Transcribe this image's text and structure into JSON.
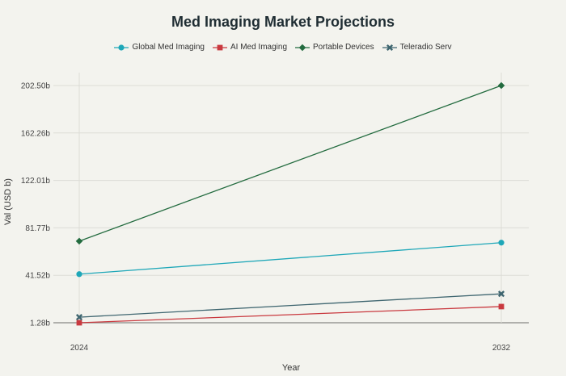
{
  "chart_data": {
    "type": "line",
    "title": "Med Imaging Market Projections",
    "xlabel": "Year",
    "ylabel": "Val (USD b)",
    "x": [
      "2024",
      "2032"
    ],
    "ylim": [
      0,
      210
    ],
    "yticks": [
      "1.28b",
      "41.52b",
      "81.77b",
      "122.01b",
      "162.26b",
      "202.50b"
    ],
    "ytick_values": [
      1.28,
      41.52,
      81.77,
      122.01,
      162.26,
      202.5
    ],
    "grid": true,
    "legend_position": "top-center",
    "series": [
      {
        "name": "Global Med Imaging",
        "values": [
          42.5,
          69.2
        ],
        "color": "#1ea7b8",
        "marker": "circle"
      },
      {
        "name": "AI Med Imaging",
        "values": [
          1.28,
          15.0
        ],
        "color": "#c9393f",
        "marker": "square"
      },
      {
        "name": "Portable Devices",
        "values": [
          70.5,
          202.5
        ],
        "color": "#236b3f",
        "marker": "diamond"
      },
      {
        "name": "Teleradio Serv",
        "values": [
          6.0,
          25.8
        ],
        "color": "#3f6670",
        "marker": "x"
      }
    ]
  }
}
